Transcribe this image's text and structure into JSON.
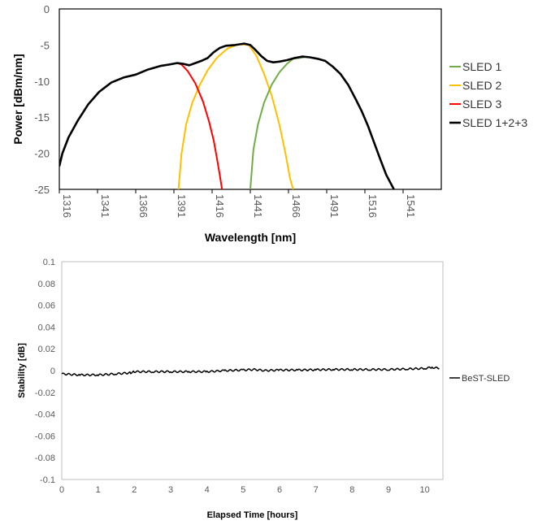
{
  "chart_data": [
    {
      "type": "line",
      "title": "",
      "xlabel": "Wavelength [nm]",
      "ylabel": "Power [dBm/nm]",
      "xlim": [
        1316,
        1566
      ],
      "ylim": [
        -25,
        0
      ],
      "x_ticks": [
        "1316",
        "1341",
        "1366",
        "1391",
        "1416",
        "1441",
        "1466",
        "1491",
        "1516",
        "1541"
      ],
      "y_ticks": [
        "0",
        "-5",
        "-10",
        "-15",
        "-20",
        "-25"
      ],
      "grid": false,
      "legend_position": "right",
      "series": [
        {
          "name": "SLED 1",
          "color": "#70ad47",
          "x": [
            1441,
            1443,
            1446,
            1450,
            1455,
            1460,
            1465,
            1469,
            1473,
            1476
          ],
          "y": [
            -25,
            -19.5,
            -16,
            -13,
            -10.5,
            -8.8,
            -7.6,
            -6.9,
            -6.8,
            -6.7
          ]
        },
        {
          "name": "SLED 2",
          "color": "#ffc000",
          "x": [
            1394,
            1396,
            1399,
            1403,
            1408,
            1413,
            1419,
            1426,
            1433,
            1440,
            1445,
            1450,
            1455,
            1460,
            1464,
            1467,
            1469
          ],
          "y": [
            -25,
            -20,
            -16,
            -13,
            -10.5,
            -8.5,
            -6.8,
            -5.5,
            -4.9,
            -5.0,
            -6.5,
            -9,
            -12,
            -16,
            -20,
            -23.5,
            -25
          ]
        },
        {
          "name": "SLED 3",
          "color": "#ff0000",
          "x": [
            1393,
            1396,
            1400,
            1405,
            1410,
            1414,
            1417,
            1419,
            1421,
            1422.5
          ],
          "y": [
            -7.5,
            -7.7,
            -8.6,
            -10.3,
            -12.8,
            -15.6,
            -18.2,
            -20.5,
            -23,
            -25
          ]
        },
        {
          "name": "SLED 1+2+3",
          "color": "#000000",
          "x": [
            1316,
            1318,
            1322,
            1328,
            1335,
            1342,
            1350,
            1358,
            1366,
            1374,
            1382,
            1388,
            1393,
            1397,
            1401,
            1405,
            1409,
            1413,
            1417,
            1421,
            1425,
            1431,
            1437,
            1441,
            1444,
            1448,
            1452,
            1456,
            1460,
            1465,
            1470,
            1475,
            1480,
            1485,
            1490,
            1495,
            1500,
            1505,
            1510,
            1514,
            1518,
            1522,
            1526,
            1530,
            1535
          ],
          "y": [
            -21.8,
            -20,
            -17.8,
            -15.5,
            -13.2,
            -11.5,
            -10.2,
            -9.5,
            -9.1,
            -8.4,
            -7.9,
            -7.7,
            -7.5,
            -7.6,
            -7.8,
            -7.5,
            -7.2,
            -6.8,
            -6.0,
            -5.4,
            -5.1,
            -5.0,
            -4.8,
            -5.0,
            -5.6,
            -6.5,
            -7.2,
            -7.4,
            -7.3,
            -7.1,
            -6.8,
            -6.6,
            -6.7,
            -6.9,
            -7.2,
            -8.0,
            -9.0,
            -10.5,
            -12.5,
            -14.2,
            -16.2,
            -18.5,
            -20.8,
            -23.0,
            -25
          ]
        }
      ]
    },
    {
      "type": "line",
      "title": "",
      "xlabel": "Elapsed Time [hours]",
      "ylabel": "Stability  [dB]",
      "xlim": [
        0,
        10.5
      ],
      "ylim": [
        -0.1,
        0.1
      ],
      "x_ticks": [
        "0",
        "1",
        "2",
        "3",
        "4",
        "5",
        "6",
        "7",
        "8",
        "9",
        "10"
      ],
      "y_ticks": [
        "0.1",
        "0.08",
        "0.06",
        "0.04",
        "0.02",
        "0",
        "-0.02",
        "-0.04",
        "-0.06",
        "-0.08",
        "-0.1"
      ],
      "grid": false,
      "legend_position": "right",
      "series": [
        {
          "name": "BeST-SLED",
          "color": "#000000",
          "x": [
            0,
            0.5,
            1.0,
            1.5,
            1.9,
            2.0,
            2.5,
            3.0,
            3.5,
            4.0,
            4.5,
            5.0,
            5.3,
            5.6,
            6.0,
            6.5,
            7.0,
            7.5,
            8.0,
            8.5,
            9.0,
            9.5,
            10.0,
            10.2,
            10.4
          ],
          "y": [
            -0.003,
            -0.004,
            -0.004,
            -0.003,
            -0.002,
            -0.001,
            -0.001,
            -0.001,
            -0.001,
            -0.001,
            0.0,
            0.0005,
            0.001,
            0.0,
            0.0005,
            0.0005,
            0.0008,
            0.001,
            0.001,
            0.001,
            0.001,
            0.0015,
            0.002,
            0.003,
            0.002
          ]
        }
      ]
    }
  ]
}
